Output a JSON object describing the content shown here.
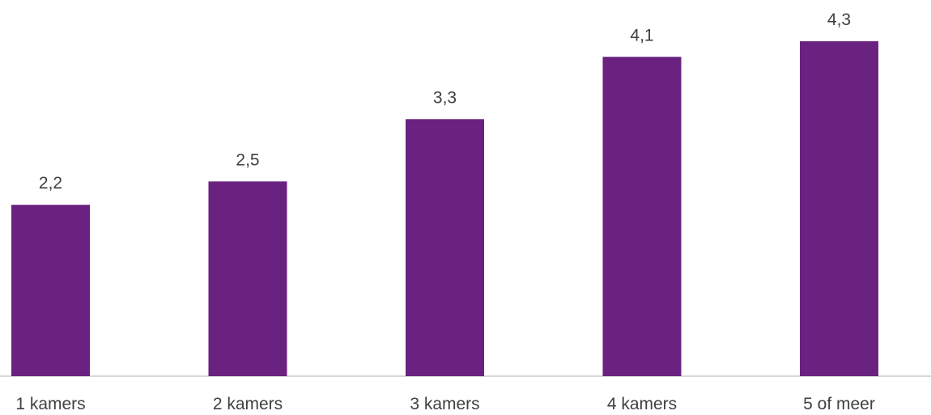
{
  "chart_data": {
    "type": "bar",
    "categories": [
      "1 kamers",
      "2 kamers",
      "3 kamers",
      "4 kamers",
      "5 of meer"
    ],
    "values": [
      2.2,
      2.5,
      3.3,
      4.1,
      4.3
    ],
    "value_labels": [
      "2,2",
      "2,5",
      "3,3",
      "4,1",
      "4,3"
    ],
    "title": "",
    "xlabel": "",
    "ylabel": "",
    "ylim": [
      0,
      4.3
    ],
    "grid": false,
    "legend": "none",
    "colors": {
      "bar": "#6A2280",
      "axis": "#D9D9D9",
      "text": "#404040"
    }
  }
}
